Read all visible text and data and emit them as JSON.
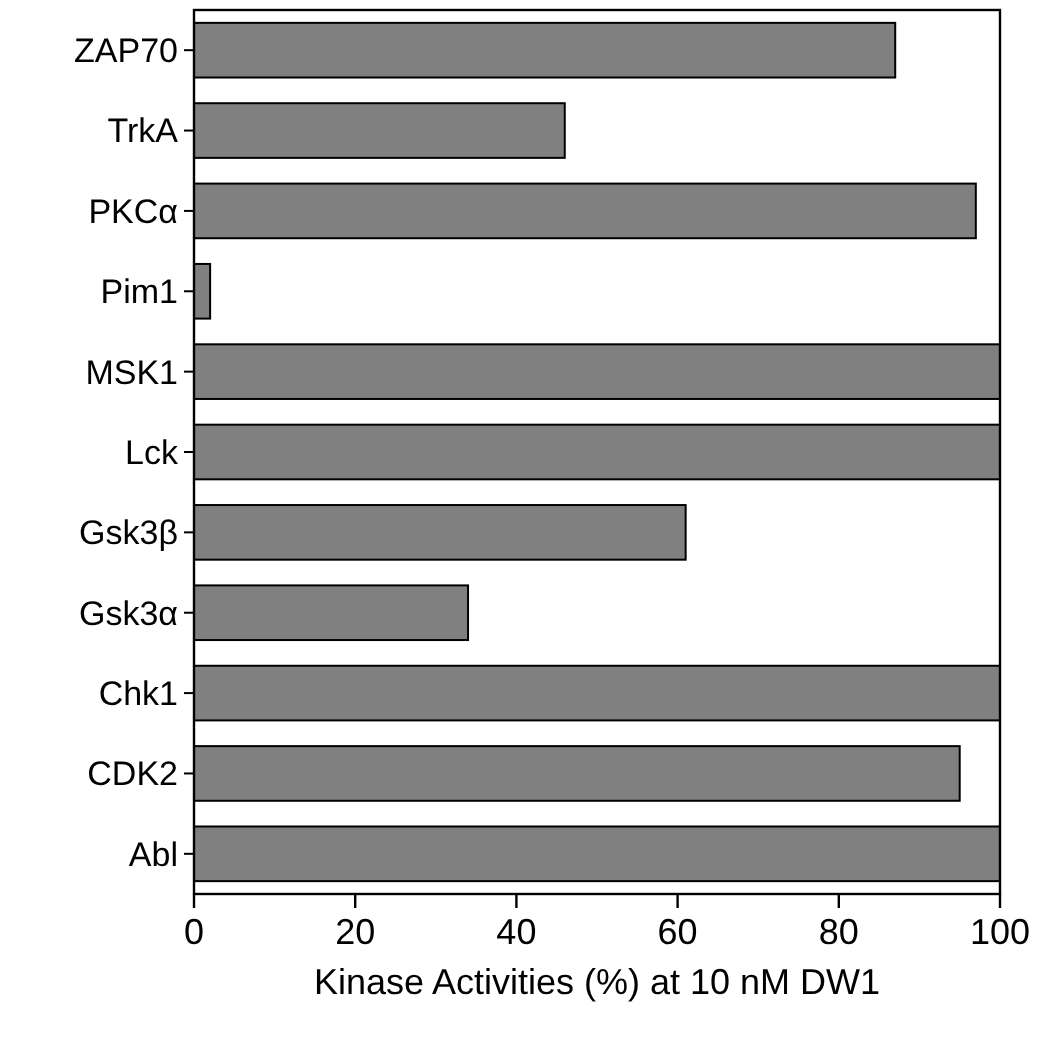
{
  "chart_data": {
    "type": "bar",
    "orientation": "horizontal",
    "xlabel": "Kinase Activities (%) at 10 nM DW1",
    "categories": [
      "ZAP70",
      "TrkA",
      "PKCα",
      "Pim1",
      "MSK1",
      "Lck",
      "Gsk3β",
      "Gsk3α",
      "Chk1",
      "CDK2",
      "Abl"
    ],
    "values": [
      87,
      46,
      97,
      2,
      100,
      100,
      61,
      34,
      100,
      95,
      100
    ],
    "color": "#808080",
    "xlim": [
      0,
      100
    ],
    "xticks": [
      0,
      20,
      40,
      60,
      80,
      100
    ],
    "grid": false
  }
}
